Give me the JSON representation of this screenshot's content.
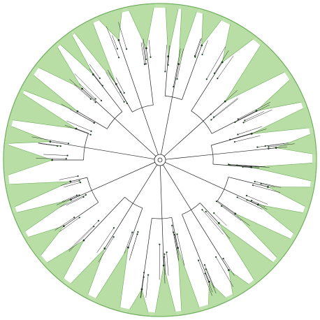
{
  "figure": {
    "type": "circular-phylogenetic-tree",
    "colors": {
      "background": "#ffffff",
      "clade_fill": "#b8dea5",
      "clade_stroke": "#6cae5a",
      "branch": "#222222",
      "node": "#1f3f1f"
    },
    "clades": [
      {
        "start_deg": 264,
        "end_deg": 276
      },
      {
        "start_deg": 276,
        "end_deg": 283
      },
      {
        "start_deg": 285,
        "end_deg": 296
      },
      {
        "start_deg": 297,
        "end_deg": 304
      },
      {
        "start_deg": 307,
        "end_deg": 318
      },
      {
        "start_deg": 319,
        "end_deg": 325
      },
      {
        "start_deg": 326,
        "end_deg": 334
      },
      {
        "start_deg": 336,
        "end_deg": 346
      },
      {
        "start_deg": 348,
        "end_deg": 358
      },
      {
        "start_deg": 2,
        "end_deg": 7
      },
      {
        "start_deg": 8,
        "end_deg": 14
      },
      {
        "start_deg": 16,
        "end_deg": 24
      },
      {
        "start_deg": 27,
        "end_deg": 38
      },
      {
        "start_deg": 41,
        "end_deg": 55
      },
      {
        "start_deg": 58,
        "end_deg": 68
      },
      {
        "start_deg": 70,
        "end_deg": 78
      },
      {
        "start_deg": 80,
        "end_deg": 88
      },
      {
        "start_deg": 91,
        "end_deg": 98
      },
      {
        "start_deg": 100,
        "end_deg": 108
      },
      {
        "start_deg": 110,
        "end_deg": 119
      },
      {
        "start_deg": 121,
        "end_deg": 130
      },
      {
        "start_deg": 132,
        "end_deg": 142
      },
      {
        "start_deg": 144,
        "end_deg": 152
      },
      {
        "start_deg": 154,
        "end_deg": 162
      },
      {
        "start_deg": 165,
        "end_deg": 172
      },
      {
        "start_deg": 174,
        "end_deg": 182
      },
      {
        "start_deg": 184,
        "end_deg": 192
      },
      {
        "start_deg": 195,
        "end_deg": 205
      },
      {
        "start_deg": 208,
        "end_deg": 216
      },
      {
        "start_deg": 219,
        "end_deg": 228
      },
      {
        "start_deg": 231,
        "end_deg": 240
      },
      {
        "start_deg": 242,
        "end_deg": 250
      },
      {
        "start_deg": 252,
        "end_deg": 261
      }
    ]
  }
}
